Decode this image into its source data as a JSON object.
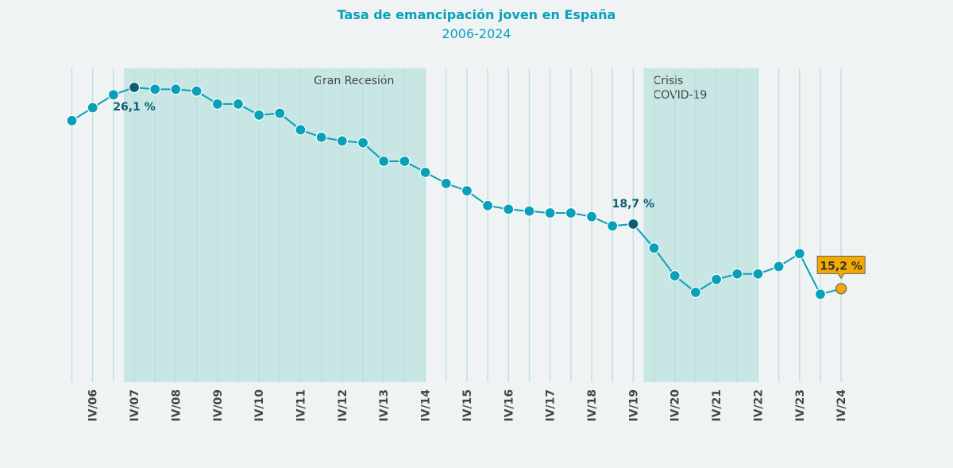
{
  "chart_data": {
    "type": "line",
    "title": "Tasa de emancipación joven en España",
    "subtitle": "2006-2024",
    "xlabel": "",
    "ylabel": "",
    "x": [
      "II/06",
      "IV/06",
      "II/07",
      "IV/07",
      "II/08",
      "IV/08",
      "II/09",
      "IV/09",
      "II/10",
      "IV/10",
      "II/11",
      "IV/11",
      "II/12",
      "IV/12",
      "II/13",
      "IV/13",
      "II/14",
      "IV/14",
      "II/15",
      "IV/15",
      "II/16",
      "IV/16",
      "II/17",
      "IV/17",
      "II/18",
      "IV/18",
      "II/19",
      "IV/19",
      "II/20",
      "IV/20",
      "II/21",
      "IV/21",
      "II/22",
      "IV/22",
      "II/23",
      "IV/23",
      "II/24",
      "IV/24"
    ],
    "values": [
      24.3,
      25.0,
      25.7,
      26.1,
      26.0,
      26.0,
      25.9,
      25.2,
      25.2,
      24.6,
      24.7,
      23.8,
      23.4,
      23.2,
      23.1,
      22.1,
      22.1,
      21.5,
      20.9,
      20.5,
      19.7,
      19.5,
      19.4,
      19.3,
      19.3,
      19.1,
      18.6,
      18.7,
      17.4,
      15.9,
      15.0,
      15.7,
      16.0,
      16.0,
      16.4,
      17.1,
      14.9,
      15.2
    ],
    "tick_labels": [
      "IV/06",
      "IV/07",
      "IV/08",
      "IV/09",
      "IV/10",
      "IV/11",
      "IV/12",
      "IV/13",
      "IV/14",
      "IV/15",
      "IV/16",
      "IV/17",
      "IV/18",
      "IV/19",
      "IV/20",
      "IV/21",
      "IV/22",
      "IV/23",
      "IV/24"
    ],
    "ylim": [
      10.1,
      27.4
    ],
    "grid": "vertical",
    "annotations": [
      {
        "x": "IV/07",
        "label": "26,1 %"
      },
      {
        "x": "IV/19",
        "label": "18,7 %"
      },
      {
        "x": "IV/24",
        "label": "15,2 %",
        "highlight": true
      }
    ],
    "shaded_periods": [
      {
        "label": "Gran Recesión",
        "from": "III/07",
        "to": "IV/14"
      },
      {
        "label": "Crisis COVID-19",
        "label_lines": [
          "Crisis",
          "COVID-19"
        ],
        "from": "I/20",
        "to": "IV/22"
      }
    ],
    "colors": {
      "line": "#0aa0ba",
      "marker": "#0aa0ba",
      "annotated_marker": "#0b5e73",
      "highlight": "#f2a900",
      "shade": "#c7e6e4",
      "grid": "#b9dfdc"
    }
  }
}
